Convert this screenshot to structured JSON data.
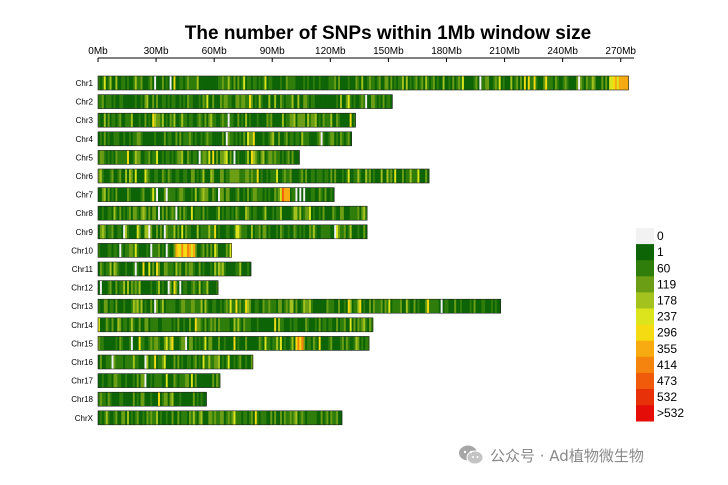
{
  "chart_data": {
    "type": "heatmap",
    "title": "The number of SNPs within 1Mb window size",
    "x_axis": {
      "unit": "Mb",
      "min": 0,
      "max": 280,
      "ticks": [
        0,
        30,
        60,
        90,
        120,
        150,
        180,
        210,
        240,
        270
      ],
      "tick_labels": [
        "0Mb",
        "30Mb",
        "60Mb",
        "90Mb",
        "120Mb",
        "150Mb",
        "180Mb",
        "210Mb",
        "240Mb",
        "270Mb"
      ]
    },
    "chromosomes": [
      {
        "name": "Chr1",
        "length": 274
      },
      {
        "name": "Chr2",
        "length": 152
      },
      {
        "name": "Chr3",
        "length": 133
      },
      {
        "name": "Chr4",
        "length": 131
      },
      {
        "name": "Chr5",
        "length": 104
      },
      {
        "name": "Chr6",
        "length": 171
      },
      {
        "name": "Chr7",
        "length": 122
      },
      {
        "name": "Chr8",
        "length": 139
      },
      {
        "name": "Chr9",
        "length": 139
      },
      {
        "name": "Chr10",
        "length": 69
      },
      {
        "name": "Chr11",
        "length": 79
      },
      {
        "name": "Chr12",
        "length": 62
      },
      {
        "name": "Chr13",
        "length": 208
      },
      {
        "name": "Chr14",
        "length": 142
      },
      {
        "name": "Chr15",
        "length": 140
      },
      {
        "name": "Chr16",
        "length": 80
      },
      {
        "name": "Chr17",
        "length": 63
      },
      {
        "name": "Chr18",
        "length": 56
      },
      {
        "name": "ChrX",
        "length": 126
      }
    ],
    "hotspots": [
      {
        "chr": "Chr1",
        "start": 264,
        "end": 274,
        "level": 7
      },
      {
        "chr": "Chr7",
        "start": 95,
        "end": 99,
        "level": 9
      },
      {
        "chr": "Chr10",
        "start": 40,
        "end": 50,
        "level": 8
      },
      {
        "chr": "Chr15",
        "start": 102,
        "end": 106,
        "level": 8
      },
      {
        "chr": "Chr5",
        "start": 79,
        "end": 81,
        "level": 7
      }
    ],
    "legend": {
      "labels": [
        "0",
        "1",
        "60",
        "119",
        "178",
        "237",
        "296",
        "355",
        "414",
        "473",
        "532",
        ">532"
      ],
      "colors": [
        "#f2f2f2",
        "#0c6406",
        "#2f7d0b",
        "#6b9e14",
        "#a4c21e",
        "#dbe41d",
        "#f5dc12",
        "#f7ab10",
        "#f4840e",
        "#ef5a0b",
        "#e63109",
        "#e40d08"
      ]
    }
  },
  "watermark": {
    "text": "公众号 · Ad植物微生物"
  }
}
